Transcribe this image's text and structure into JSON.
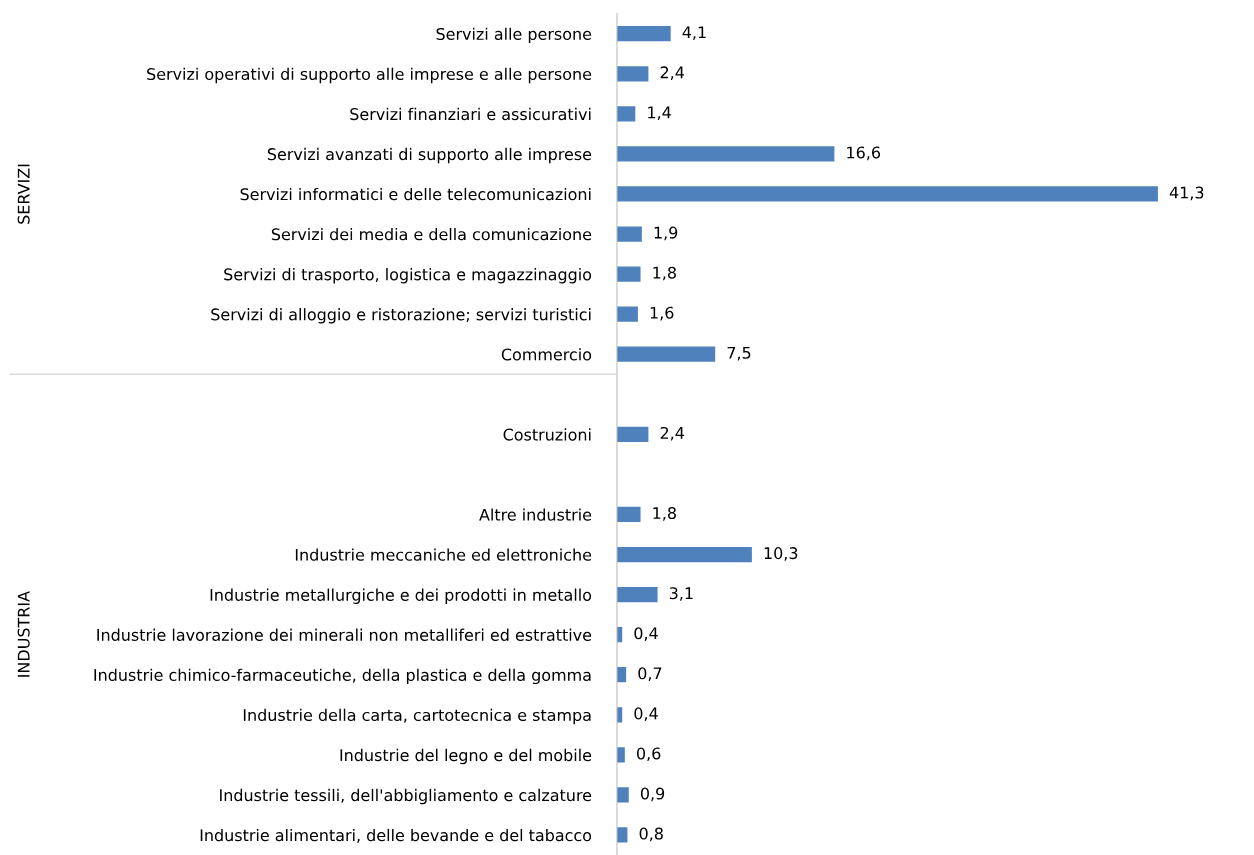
{
  "chart_data": {
    "type": "bar",
    "orientation": "horizontal",
    "color": "#4f81bd",
    "categories": [
      "Servizi alle persone",
      "Servizi operativi di supporto alle imprese e alle persone",
      "Servizi finanziari e assicurativi",
      "Servizi avanzati di supporto alle imprese",
      "Servizi informatici e delle telecomunicazioni",
      "Servizi dei media e della comunicazione",
      "Servizi di trasporto, logistica e magazzinaggio",
      "Servizi di alloggio e ristorazione; servizi turistici",
      "Commercio",
      null,
      "Costruzioni",
      null,
      "Altre industrie",
      "Industrie meccaniche ed elettroniche",
      "Industrie metallurgiche e dei prodotti in metallo",
      "Industrie lavorazione dei minerali non metalliferi ed estrattive",
      "Industrie chimico-farmaceutiche, della plastica e della gomma",
      "Industrie della carta, cartotecnica e stampa",
      "Industrie del legno e del mobile",
      "Industrie tessili, dell'abbigliamento e calzature",
      "Industrie alimentari, delle bevande e del tabacco"
    ],
    "values": [
      4.1,
      2.4,
      1.4,
      16.6,
      41.3,
      1.9,
      1.8,
      1.6,
      7.5,
      null,
      2.4,
      null,
      1.8,
      10.3,
      3.1,
      0.4,
      0.7,
      0.4,
      0.6,
      0.9,
      0.8
    ],
    "value_labels": [
      "4,1",
      "2,4",
      "1,4",
      "16,6",
      "41,3",
      "1,9",
      "1,8",
      "1,6",
      "7,5",
      null,
      "2,4",
      null,
      "1,8",
      "10,3",
      "3,1",
      "0,4",
      "0,7",
      "0,4",
      "0,6",
      "0,9",
      "0,8"
    ],
    "annotations": [
      "SERVIZI",
      "INDUSTRIA"
    ],
    "grid": false,
    "legend": false
  }
}
